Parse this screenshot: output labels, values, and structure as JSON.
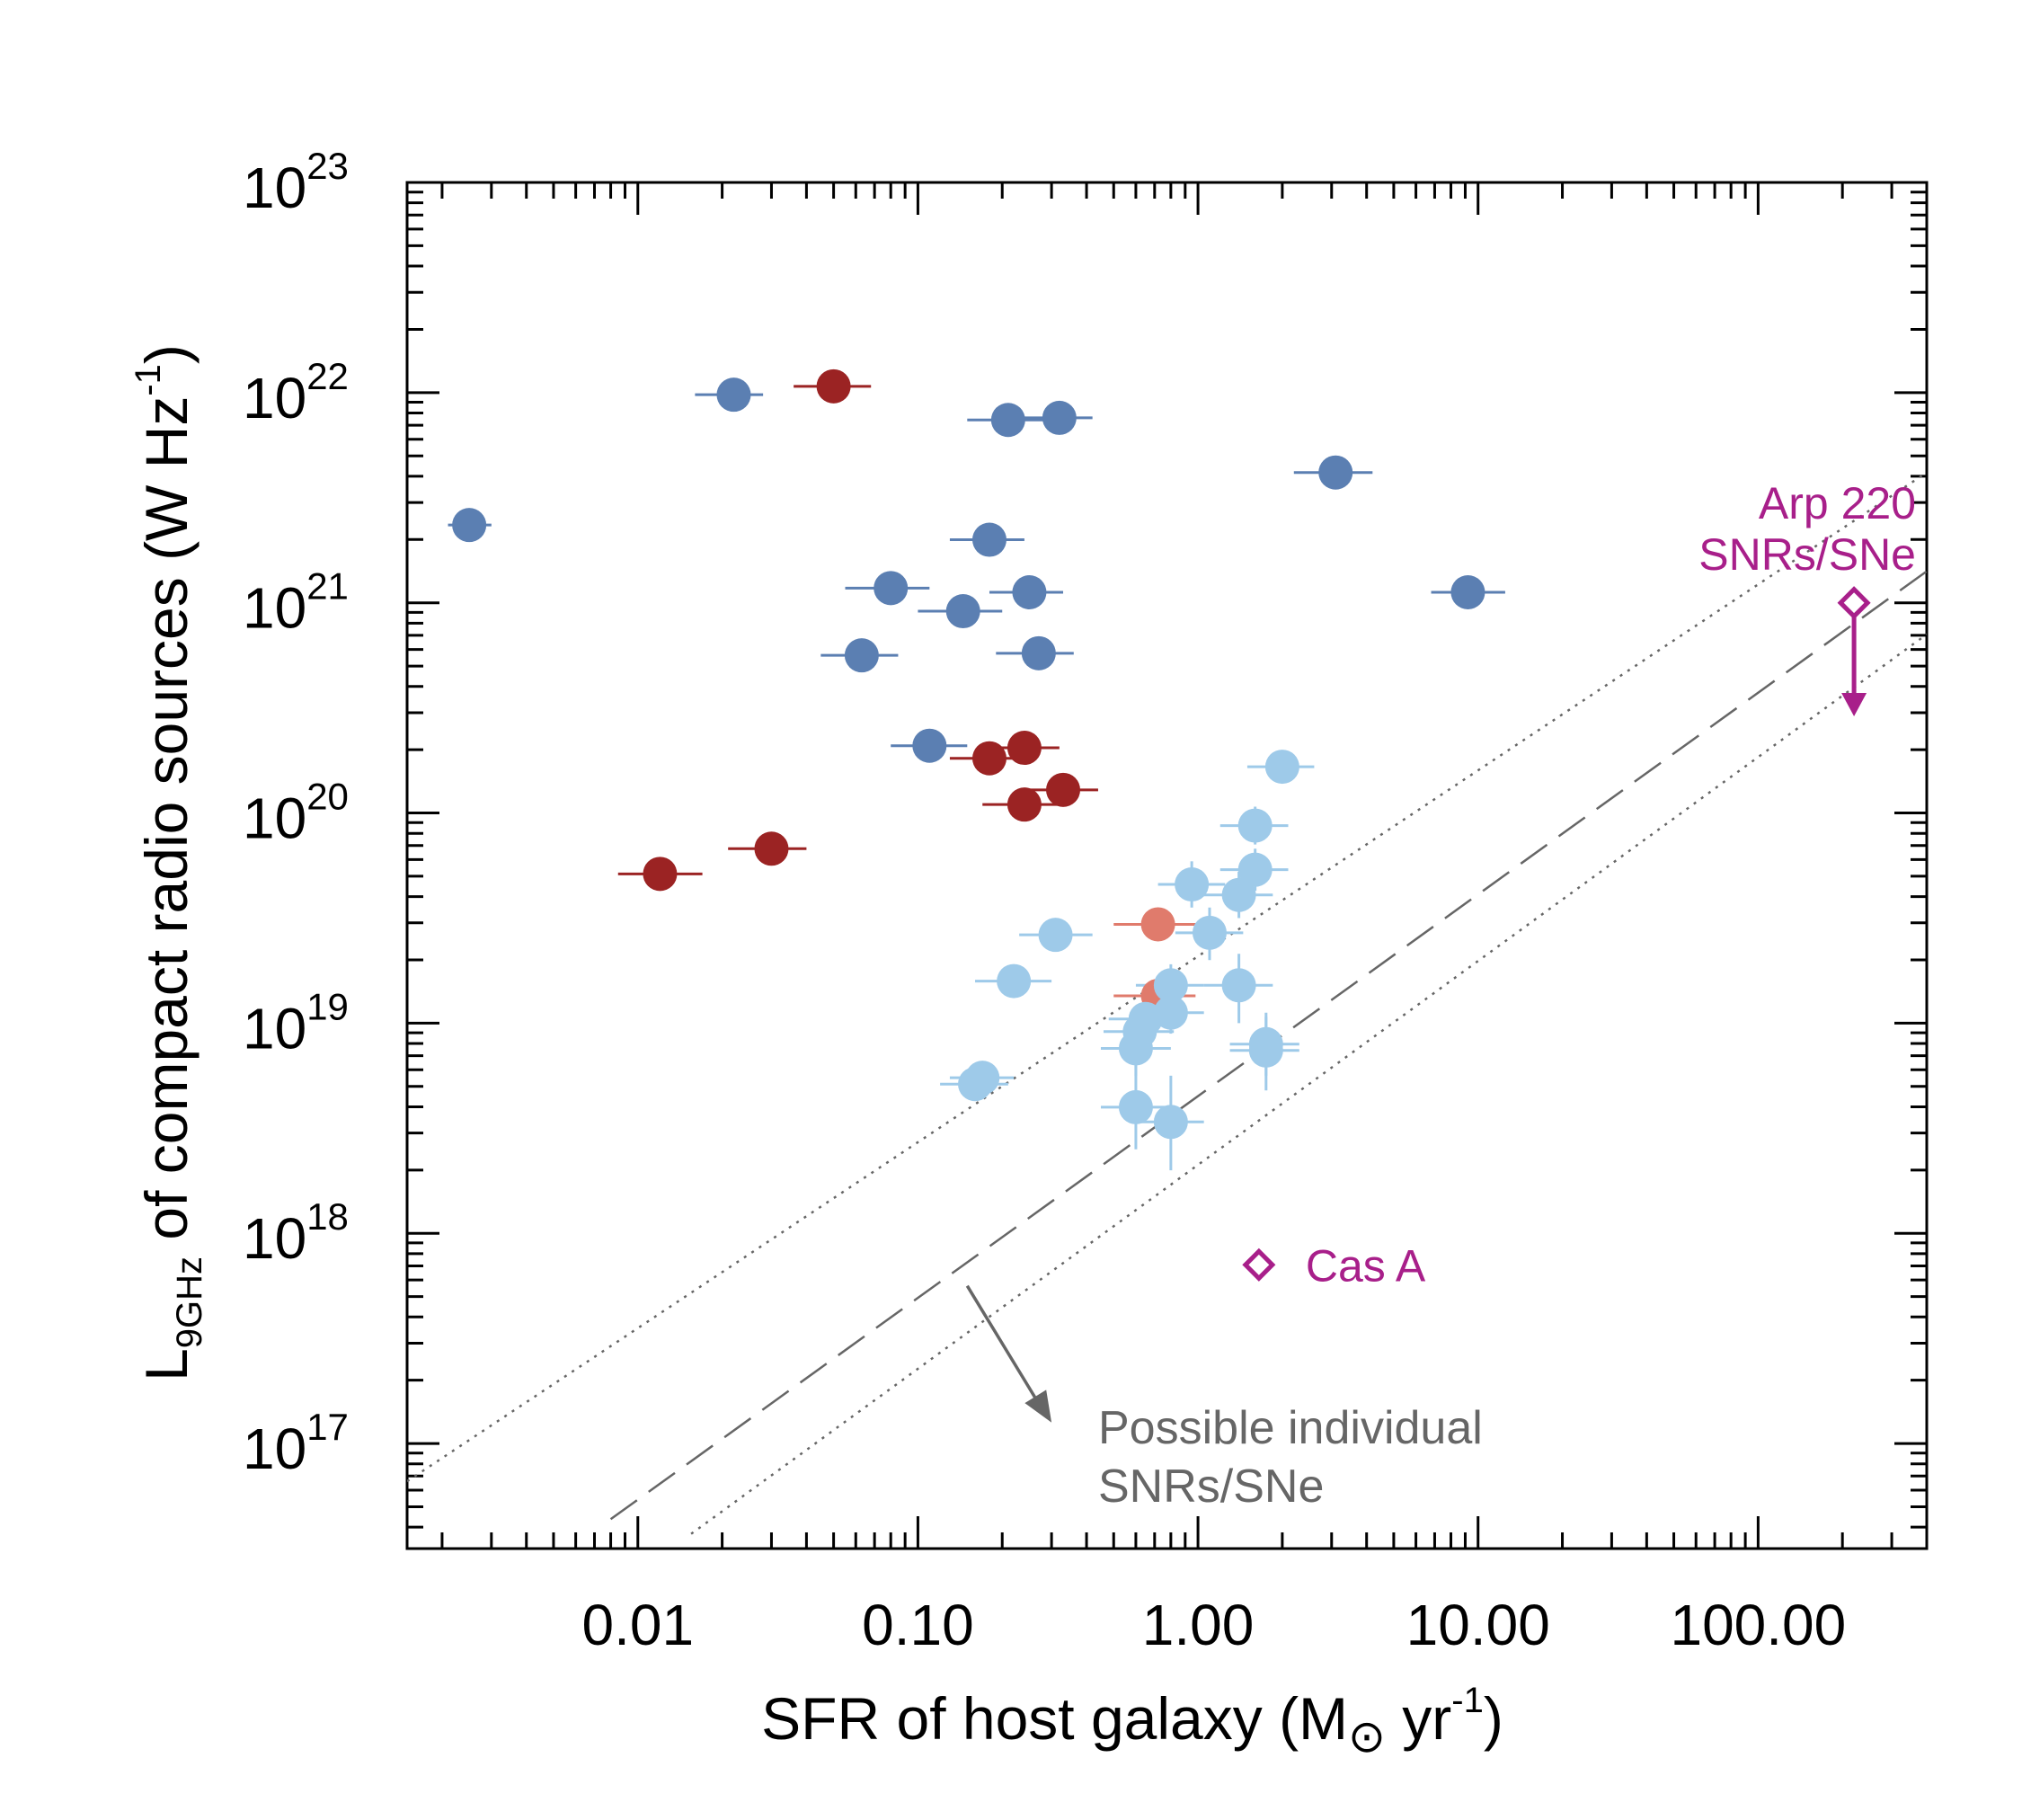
{
  "chart_data": {
    "type": "scatter",
    "title": "",
    "xscale": "log",
    "yscale": "log",
    "xlim": [
      0.0015,
      400
    ],
    "ylim_exp": [
      16.5,
      23
    ],
    "xlabel": {
      "pre": "SFR of host galaxy (M",
      "sym": "⊙",
      "mid": " yr",
      "sup": "-1",
      "post": ")"
    },
    "ylabel": {
      "pre": "L",
      "sub": "9GHz",
      "mid": " of compact radio sources (W Hz",
      "sup": "-1",
      "post": ")"
    },
    "x_ticks": [
      {
        "value": 0.01,
        "label": "0.01"
      },
      {
        "value": 0.1,
        "label": "0.10"
      },
      {
        "value": 1,
        "label": "1.00"
      },
      {
        "value": 10,
        "label": "10.00"
      },
      {
        "value": 100,
        "label": "100.00"
      }
    ],
    "y_ticks": [
      {
        "exp": 17,
        "base": "10",
        "sup": "17"
      },
      {
        "exp": 18,
        "base": "10",
        "sup": "18"
      },
      {
        "exp": 19,
        "base": "10",
        "sup": "19"
      },
      {
        "exp": 20,
        "base": "10",
        "sup": "20"
      },
      {
        "exp": 21,
        "base": "10",
        "sup": "21"
      },
      {
        "exp": 22,
        "base": "10",
        "sup": "22"
      },
      {
        "exp": 23,
        "base": "10",
        "sup": "23"
      }
    ],
    "series": [
      {
        "name": "dark-blue",
        "color": "#5b7fb2",
        "points": [
          {
            "x": 0.0025,
            "logy": 21.37,
            "xerr": [
              0.0021,
              0.003
            ]
          },
          {
            "x": 0.022,
            "logy": 21.99,
            "xerr": [
              0.016,
              0.028
            ]
          },
          {
            "x": 0.08,
            "logy": 21.07,
            "xerr": [
              0.055,
              0.11
            ]
          },
          {
            "x": 0.145,
            "logy": 20.96,
            "xerr": [
              0.1,
              0.2
            ]
          },
          {
            "x": 0.063,
            "logy": 20.75,
            "xerr": [
              0.045,
              0.085
            ]
          },
          {
            "x": 0.11,
            "logy": 20.32,
            "xerr": [
              0.08,
              0.15
            ]
          },
          {
            "x": 0.18,
            "logy": 21.3,
            "xerr": [
              0.13,
              0.24
            ]
          },
          {
            "x": 0.21,
            "logy": 21.87,
            "xerr": [
              0.15,
              0.28
            ]
          },
          {
            "x": 0.32,
            "logy": 21.88,
            "xerr": [
              0.24,
              0.42
            ]
          },
          {
            "x": 0.25,
            "logy": 21.05,
            "xerr": [
              0.18,
              0.33
            ]
          },
          {
            "x": 0.27,
            "logy": 20.76,
            "xerr": [
              0.19,
              0.36
            ]
          },
          {
            "x": 3.1,
            "logy": 21.62,
            "xerr": [
              2.2,
              4.2
            ]
          },
          {
            "x": 9.2,
            "logy": 21.05,
            "xerr": [
              6.8,
              12.5
            ]
          }
        ]
      },
      {
        "name": "dark-red",
        "color": "#9b2323",
        "points": [
          {
            "x": 0.05,
            "logy": 22.03,
            "xerr": [
              0.036,
              0.068
            ]
          },
          {
            "x": 0.012,
            "logy": 19.71,
            "xerr": [
              0.0085,
              0.017
            ]
          },
          {
            "x": 0.03,
            "logy": 19.83,
            "xerr": [
              0.021,
              0.04
            ]
          },
          {
            "x": 0.18,
            "logy": 20.26,
            "xerr": [
              0.13,
              0.24
            ]
          },
          {
            "x": 0.24,
            "logy": 20.31,
            "xerr": [
              0.17,
              0.32
            ]
          },
          {
            "x": 0.24,
            "logy": 20.04,
            "xerr": [
              0.17,
              0.32
            ]
          },
          {
            "x": 0.33,
            "logy": 20.11,
            "xerr": [
              0.24,
              0.44
            ]
          }
        ]
      },
      {
        "name": "light-red",
        "color": "#e07b6c",
        "points": [
          {
            "x": 0.72,
            "logy": 19.47,
            "xerr": [
              0.5,
              0.98
            ]
          },
          {
            "x": 0.72,
            "logy": 19.13,
            "xerr": [
              0.5,
              0.98
            ]
          }
        ]
      },
      {
        "name": "light-blue",
        "color": "#9ecae9",
        "points": [
          {
            "x": 0.16,
            "logy": 18.71,
            "xerr": [
              0.12,
              0.21
            ]
          },
          {
            "x": 0.17,
            "logy": 18.74,
            "xerr": [
              0.13,
              0.22
            ]
          },
          {
            "x": 0.22,
            "logy": 19.2,
            "xerr": [
              0.16,
              0.3
            ]
          },
          {
            "x": 0.31,
            "logy": 19.42,
            "xerr": [
              0.23,
              0.42
            ]
          },
          {
            "x": 0.6,
            "logy": 18.6,
            "xerr": [
              0.45,
              0.8
            ],
            "yerr": [
              18.4,
              18.8
            ]
          },
          {
            "x": 0.6,
            "logy": 18.88,
            "xerr": [
              0.45,
              0.8
            ],
            "yerr": [
              18.75,
              19.0
            ]
          },
          {
            "x": 0.62,
            "logy": 18.96,
            "xerr": [
              0.46,
              0.82
            ],
            "yerr": [
              18.85,
              19.07
            ]
          },
          {
            "x": 0.65,
            "logy": 19.02,
            "xerr": [
              0.48,
              0.86
            ],
            "yerr": [
              18.9,
              19.12
            ]
          },
          {
            "x": 0.8,
            "logy": 19.05,
            "xerr": [
              0.6,
              1.05
            ],
            "yerr": [
              18.95,
              19.15
            ]
          },
          {
            "x": 0.8,
            "logy": 19.18,
            "xerr": [
              0.6,
              1.05
            ],
            "yerr": [
              19.08,
              19.28
            ]
          },
          {
            "x": 0.8,
            "logy": 18.53,
            "xerr": [
              0.6,
              1.05
            ],
            "yerr": [
              18.3,
              18.75
            ]
          },
          {
            "x": 0.95,
            "logy": 19.66,
            "xerr": [
              0.72,
              1.25
            ],
            "yerr": [
              19.55,
              19.77
            ]
          },
          {
            "x": 1.1,
            "logy": 19.43,
            "xerr": [
              0.83,
              1.45
            ],
            "yerr": [
              19.3,
              19.55
            ]
          },
          {
            "x": 1.4,
            "logy": 19.61,
            "xerr": [
              1.05,
              1.85
            ],
            "yerr": [
              19.5,
              19.72
            ]
          },
          {
            "x": 1.4,
            "logy": 19.18,
            "xerr": [
              1.05,
              1.85
            ],
            "yerr": [
              19.0,
              19.33
            ]
          },
          {
            "x": 1.6,
            "logy": 19.73,
            "xerr": [
              1.2,
              2.1
            ],
            "yerr": [
              19.63,
              19.83
            ]
          },
          {
            "x": 1.6,
            "logy": 19.94,
            "xerr": [
              1.2,
              2.1
            ],
            "yerr": [
              19.85,
              20.03
            ]
          },
          {
            "x": 1.75,
            "logy": 18.9,
            "xerr": [
              1.3,
              2.3
            ],
            "yerr": [
              18.75,
              19.03
            ]
          },
          {
            "x": 1.75,
            "logy": 18.87,
            "xerr": [
              1.3,
              2.3
            ],
            "yerr": [
              18.68,
              19.05
            ]
          },
          {
            "x": 2.0,
            "logy": 20.22,
            "xerr": [
              1.5,
              2.6
            ]
          }
        ]
      }
    ],
    "reference_points": [
      {
        "name": "Arp 220",
        "x": 220,
        "logy": 21.0,
        "color": "#a81f8a",
        "upper_limit_to_logy": 20.46,
        "label": [
          "Arp 220",
          "SNRs/SNe"
        ]
      },
      {
        "name": "Cas A",
        "x": 1.65,
        "logy": 17.85,
        "color": "#a81f8a",
        "label": [
          "Cas A"
        ]
      }
    ],
    "lines": [
      {
        "style": "dashed",
        "color": "#666666",
        "from": [
          0.008,
          16.64
        ],
        "to": [
          400,
          21.15
        ]
      },
      {
        "style": "dotted",
        "color": "#666666",
        "from": [
          0.0015,
          16.82
        ],
        "to": [
          400,
          21.62
        ]
      },
      {
        "style": "dotted",
        "color": "#666666",
        "from": [
          0.0155,
          16.57
        ],
        "to": [
          400,
          20.85
        ]
      }
    ],
    "annotation": {
      "lines": [
        "Possible individual",
        "SNRs/SNe"
      ],
      "color": "#666666",
      "arrow_from": [
        0.15,
        17.75
      ],
      "arrow_to": [
        0.3,
        17.1
      ]
    }
  }
}
